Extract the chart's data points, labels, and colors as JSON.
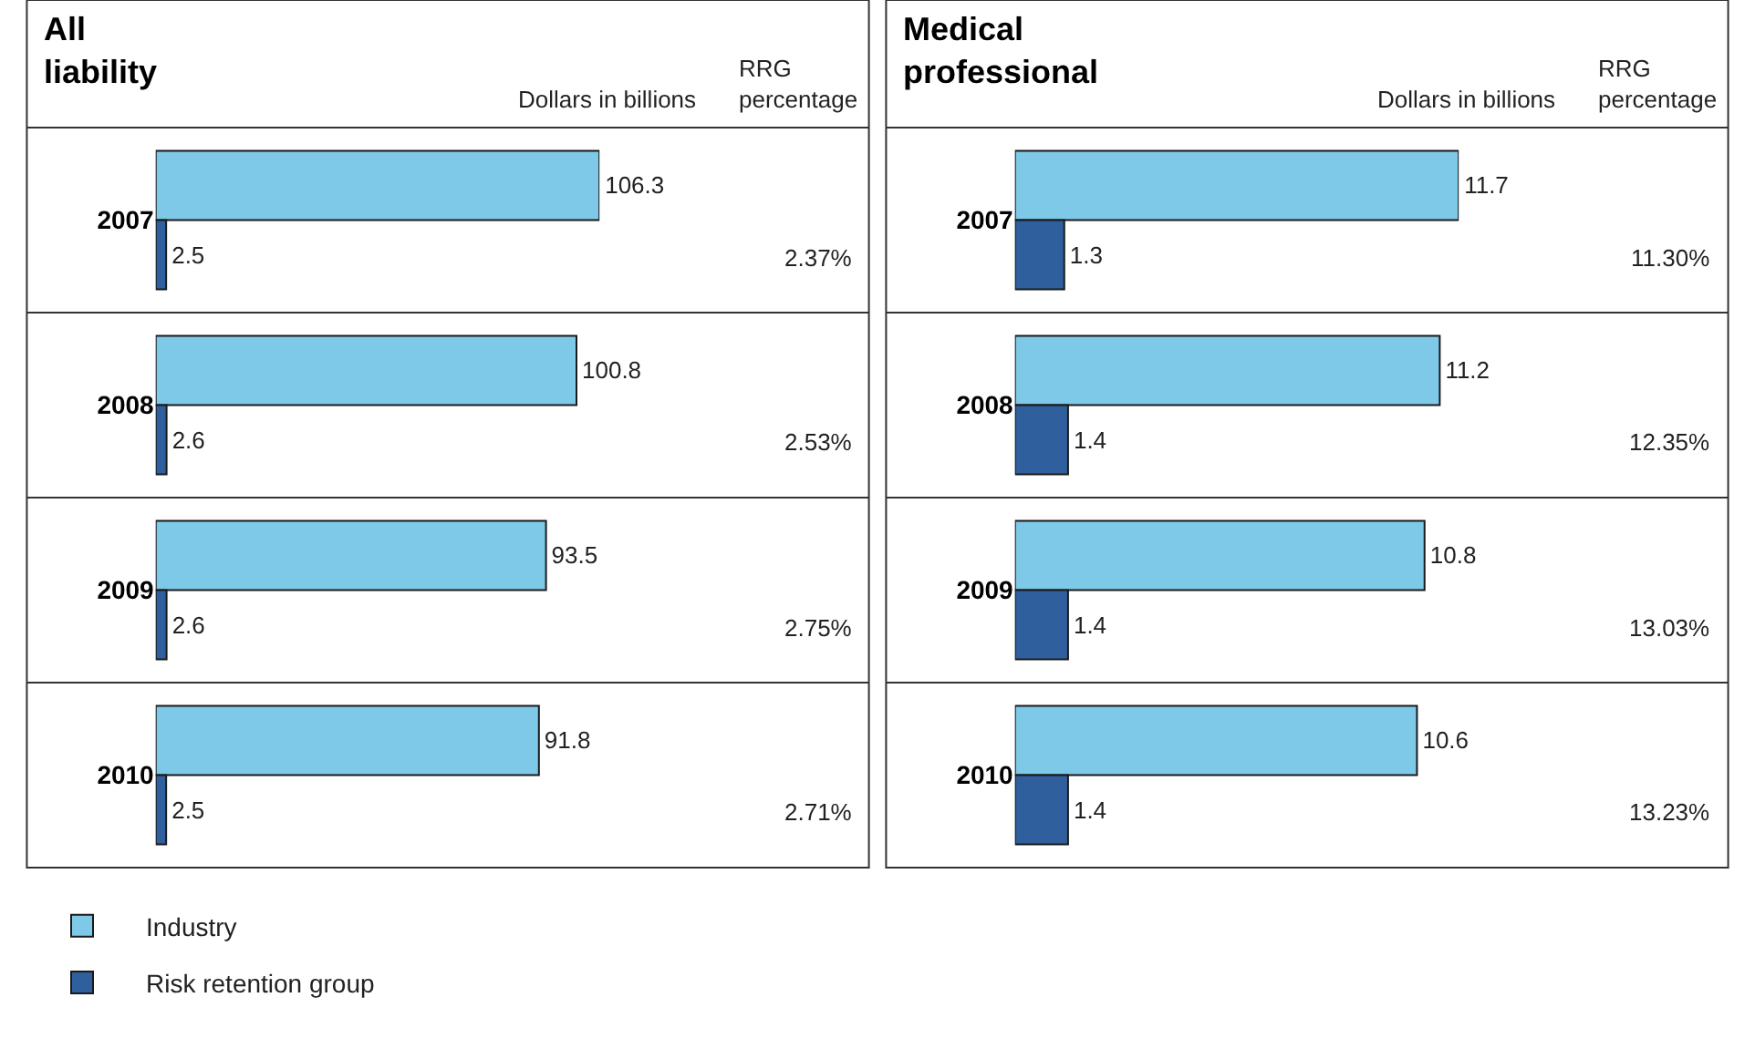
{
  "chart_data": [
    {
      "type": "bar",
      "orientation": "horizontal",
      "title": "All liability",
      "xlabel": "Dollars in billions",
      "categories": [
        "2007",
        "2008",
        "2009",
        "2010"
      ],
      "data_labels": true,
      "legend": "bottom left",
      "series": [
        {
          "name": "Industry",
          "color": "#7ec8e8",
          "values": [
            106.3,
            100.8,
            93.5,
            91.8
          ]
        },
        {
          "name": "Risk retention group",
          "color": "#2f5f9c",
          "values": [
            2.5,
            2.6,
            2.6,
            2.5
          ]
        }
      ],
      "annotations": [
        "RRG percentage",
        "2.37%",
        "2.53%",
        "2.75%",
        "2.71%"
      ]
    },
    {
      "type": "bar",
      "orientation": "horizontal",
      "title": "Medical professional",
      "xlabel": "Dollars in billions",
      "categories": [
        "2007",
        "2008",
        "2009",
        "2010"
      ],
      "data_labels": true,
      "series": [
        {
          "color": "#7ec8e8",
          "values": [
            11.7,
            11.2,
            10.8,
            10.6
          ]
        },
        {
          "color": "#2f5f9c",
          "values": [
            1.3,
            1.4,
            1.4,
            1.4
          ]
        }
      ],
      "annotations": [
        "RRG percentage",
        "11.30%",
        "12.35%",
        "13.03%",
        "13.23%"
      ]
    }
  ]
}
